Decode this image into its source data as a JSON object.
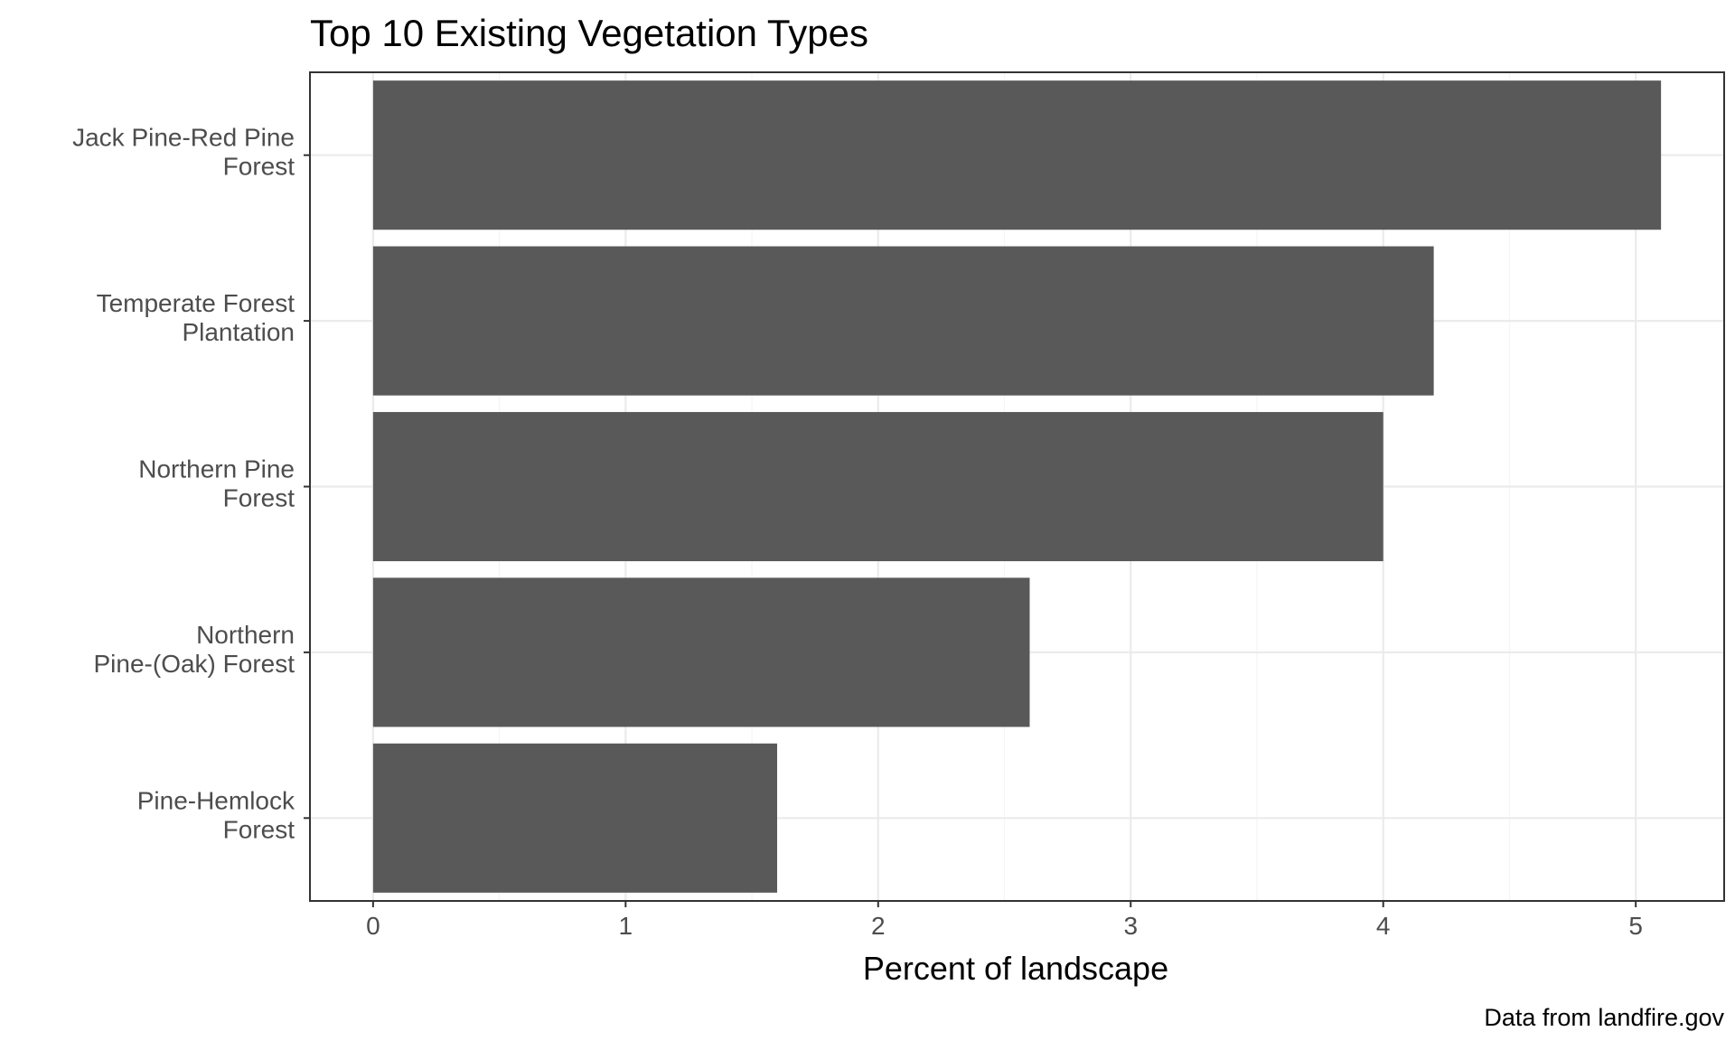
{
  "chart_data": {
    "type": "bar",
    "orientation": "horizontal",
    "title": "Top 10 Existing Vegetation Types",
    "xlabel": "Percent of landscape",
    "ylabel": "",
    "caption": "Data from landfire.gov",
    "categories": [
      [
        "Jack Pine-Red Pine",
        "Forest"
      ],
      [
        "Temperate Forest",
        "Plantation"
      ],
      [
        "Northern Pine",
        "Forest"
      ],
      [
        "Northern",
        "Pine-(Oak) Forest"
      ],
      [
        "Pine-Hemlock",
        "Forest"
      ]
    ],
    "values": [
      5.1,
      4.2,
      4.0,
      2.6,
      1.6
    ],
    "xlim": [
      -0.25,
      5.35
    ],
    "xticks": [
      "0",
      "1",
      "2",
      "3",
      "4",
      "5"
    ],
    "grid": true,
    "legend": "none",
    "colors": {
      "bar": "#595959",
      "grid_major": "#ebebeb",
      "grid_minor": "#f5f5f5",
      "panel_border": "#333333"
    }
  }
}
